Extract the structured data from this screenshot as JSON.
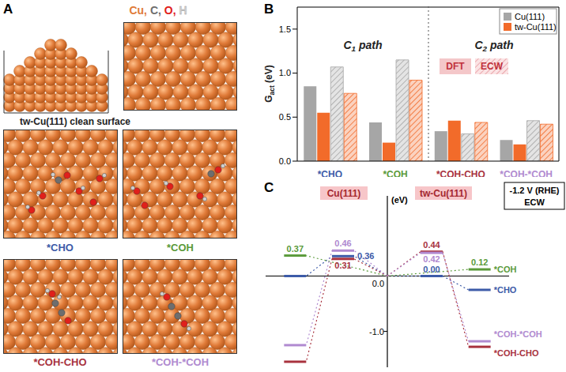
{
  "panel_labels": [
    "A",
    "B",
    "C"
  ],
  "structures": {
    "legend": [
      {
        "text": "Cu,",
        "color": "#e07b39"
      },
      {
        "text": "C,",
        "color": "#6e6e6e"
      },
      {
        "text": "O,",
        "color": "#e0201b"
      },
      {
        "text": "H",
        "color": "#d0d0d0"
      }
    ],
    "clean_label": "tw-Cu(111) clean surface",
    "adsorbates": [
      "*CHO",
      "*COH",
      "*COH-CHO",
      "*COH-*COH"
    ]
  },
  "chart_data": [
    {
      "type": "bar",
      "ylabel": {
        "text": "G",
        "sub": "act",
        "tail": " (eV)"
      },
      "categories": [
        "*CHO",
        "*COH",
        "*COH-CHO",
        "*COH-*COH"
      ],
      "annotations": [
        {
          "text": "C",
          "sub": "1",
          "tail": " path"
        },
        {
          "text": "C",
          "sub": "2",
          "tail": " path"
        }
      ],
      "groups": [
        "DFT",
        "ECW"
      ],
      "series": [
        {
          "name": "Cu(111)",
          "group": "DFT",
          "color": "#a6a6a6",
          "values": [
            0.85,
            0.44,
            0.34,
            0.24
          ]
        },
        {
          "name": "tw-Cu(111)",
          "group": "DFT",
          "color": "#f26b2a",
          "values": [
            0.55,
            0.21,
            0.46,
            0.19
          ]
        },
        {
          "name": "Cu(111)",
          "group": "ECW",
          "color": "#a6a6a6",
          "values": [
            1.07,
            1.15,
            0.31,
            0.46
          ]
        },
        {
          "name": "tw-Cu(111)",
          "group": "ECW",
          "color": "#f26b2a",
          "values": [
            0.77,
            0.92,
            0.44,
            0.42
          ]
        }
      ],
      "ylim": [
        0,
        1.75
      ],
      "yticks": [
        {
          "value": 0,
          "label": "0.0"
        },
        {
          "value": 0.5,
          "label": "0.5"
        },
        {
          "value": 1,
          "label": "1.0"
        },
        {
          "value": 1.5,
          "label": "1.5"
        }
      ],
      "legend": "upper right"
    },
    {
      "type": "energy_diagram",
      "ylabel": "(eV)",
      "ylim": [
        -1.65,
        1.45
      ],
      "yticks": [
        {
          "value": -1,
          "label": "-1.0"
        },
        {
          "value": 0,
          "label": "0.0"
        }
      ],
      "initial": 0,
      "annotations": [
        "-1.2 V (RHE)",
        "ECW"
      ],
      "panels": [
        "Cu(111)",
        "tw-Cu(111)"
      ],
      "series": [
        {
          "name": "*CHO",
          "color": "#3d5ba8",
          "ts": [
            0.36,
            0.0
          ],
          "ts_labels": [
            "0.36",
            "0.00"
          ],
          "final": [
            0.0,
            -0.25
          ],
          "final_labels": [
            null,
            null
          ]
        },
        {
          "name": "*COH",
          "color": "#5a9a3a",
          "ts": [
            null,
            null
          ],
          "ts_labels": [
            null,
            null
          ],
          "final": [
            0.37,
            0.12
          ],
          "final_labels": [
            "0.37",
            "0.12"
          ]
        },
        {
          "name": "*COH-CHO",
          "color": "#a8323e",
          "ts": [
            0.31,
            0.44
          ],
          "ts_labels": [
            "0.31",
            "0.44"
          ],
          "final": [
            -1.55,
            -1.28
          ],
          "final_labels": [
            null,
            null
          ]
        },
        {
          "name": "*COH-*COH",
          "color": "#b08ad0",
          "ts": [
            0.46,
            0.42
          ],
          "ts_labels": [
            "0.46",
            "0.42"
          ],
          "final": [
            -1.25,
            -1.18
          ],
          "final_labels": [
            null,
            null
          ]
        }
      ]
    }
  ]
}
